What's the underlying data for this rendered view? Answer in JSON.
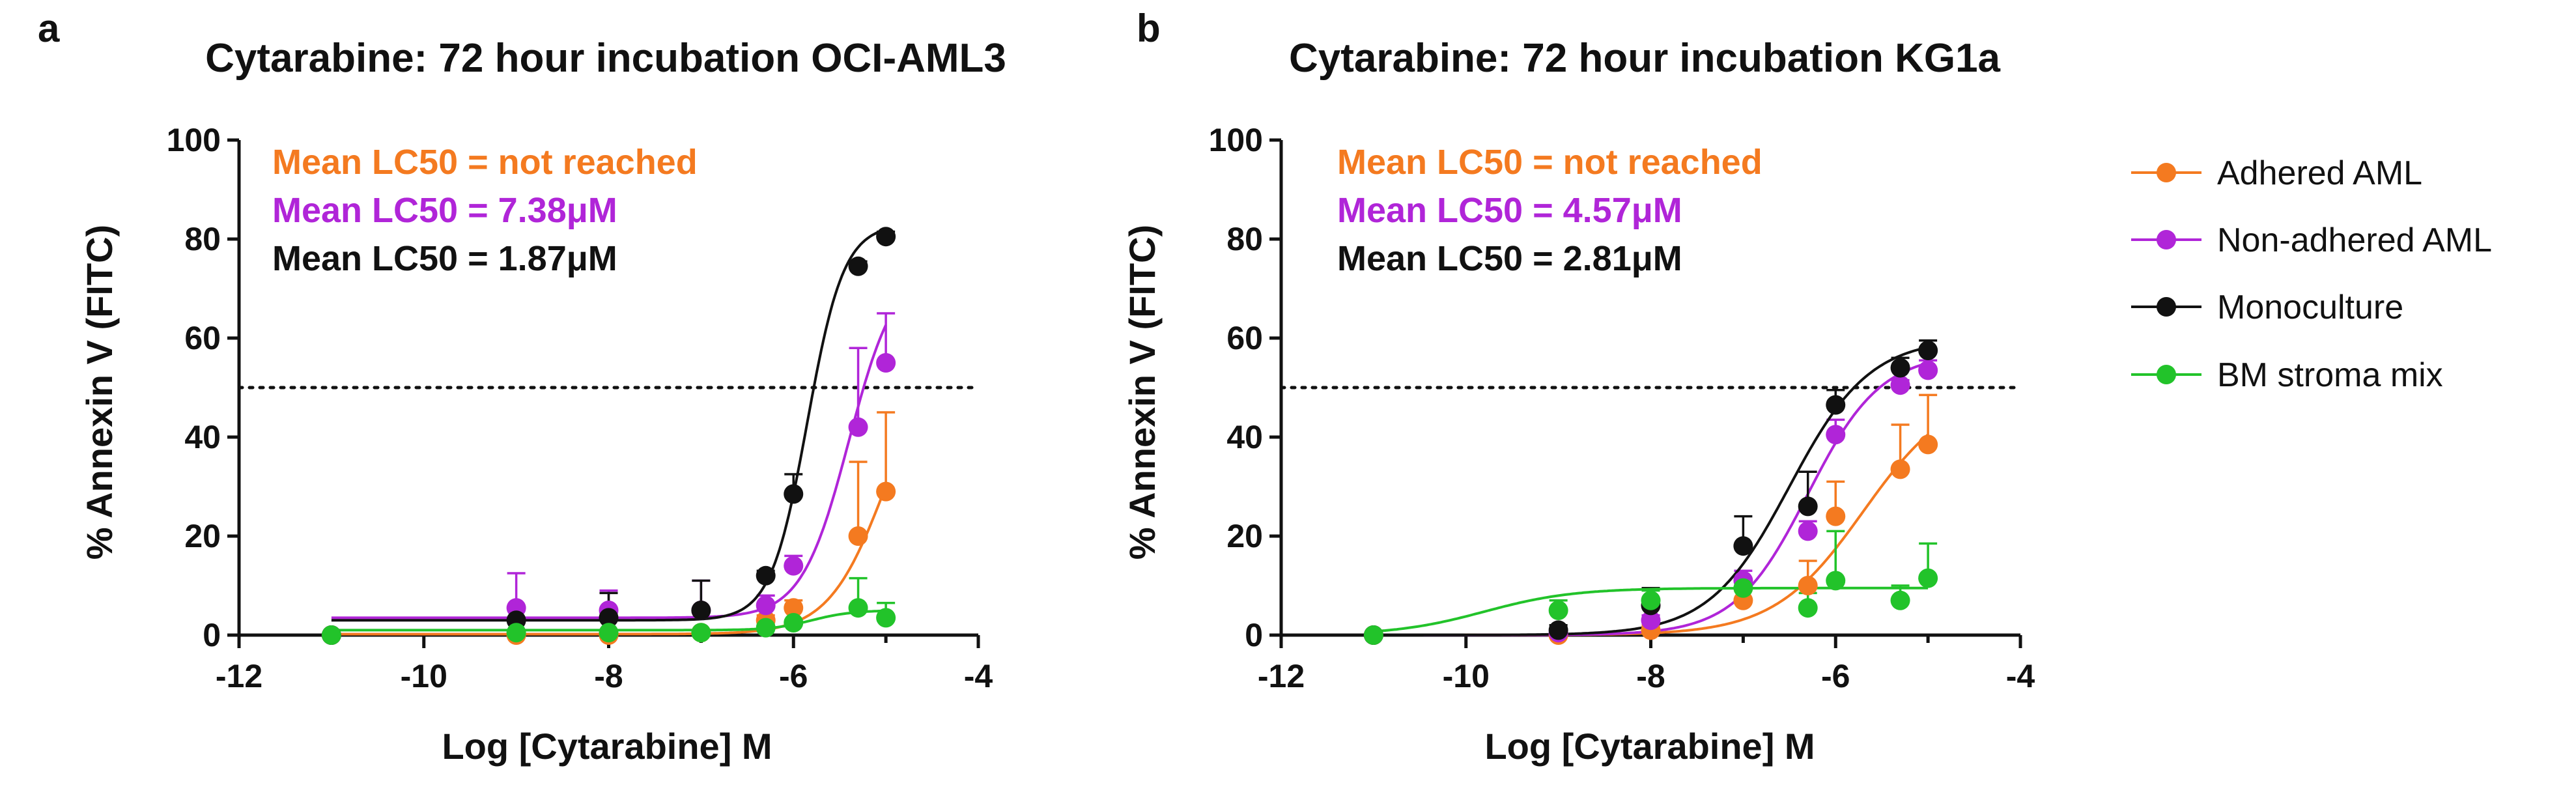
{
  "colors": {
    "adhered": "#F47A20",
    "non_adhered": "#B025D8",
    "monoculture": "#111111",
    "stroma": "#22C32A"
  },
  "legend": [
    {
      "key": "adhered",
      "label": "Adhered AML"
    },
    {
      "key": "non_adhered",
      "label": "Non-adhered AML"
    },
    {
      "key": "monoculture",
      "label": "Monoculture"
    },
    {
      "key": "stroma",
      "label": "BM stroma mix"
    }
  ],
  "chart_data": [
    {
      "type": "scatter",
      "panel": "a",
      "title": "Cytarabine: 72 hour incubation OCI-AML3",
      "xlabel": "Log [Cytarabine] M",
      "ylabel": "% Annexin V (FITC)",
      "xlim": [
        -12,
        -4
      ],
      "ylim": [
        0,
        100
      ],
      "xticks": [
        -12,
        -10,
        -8,
        -6,
        -4
      ],
      "yticks": [
        0,
        20,
        40,
        60,
        80,
        100
      ],
      "threshold": 50,
      "annotations": [
        {
          "key": "adhered",
          "text": "Mean LC50 = not reached"
        },
        {
          "key": "non_adhered",
          "text": "Mean LC50 = 7.38μM"
        },
        {
          "key": "monoculture",
          "text": "Mean LC50 = 1.87μM"
        }
      ],
      "series": [
        {
          "key": "adhered",
          "name": "Adhered AML",
          "x": [
            -11,
            -9,
            -8,
            -7,
            -6.3,
            -6,
            -5.3,
            -5
          ],
          "y": [
            0,
            0,
            0,
            0.5,
            3,
            5.5,
            20,
            29
          ],
          "err": [
            0,
            0,
            0,
            0.5,
            1,
            1.5,
            15,
            16
          ],
          "curve": {
            "bottom": 0.2,
            "top": 60,
            "logEC50": -5.0,
            "hill": 1.4
          }
        },
        {
          "key": "non_adhered",
          "name": "Non-adhered AML",
          "x": [
            -11,
            -9,
            -8,
            -7,
            -6.3,
            -6,
            -5.3,
            -5
          ],
          "y": [
            0,
            5.5,
            5,
            5,
            6,
            14,
            42,
            55
          ],
          "err": [
            0,
            7,
            4,
            6,
            2,
            2,
            16,
            10
          ],
          "curve": {
            "bottom": 3.5,
            "top": 75,
            "logEC50": -5.4,
            "hill": 1.7
          }
        },
        {
          "key": "monoculture",
          "name": "Monoculture",
          "x": [
            -11,
            -9,
            -8,
            -7,
            -6.3,
            -6,
            -5.3,
            -5
          ],
          "y": [
            0,
            3,
            3.5,
            5,
            12,
            28.5,
            74.5,
            80.5
          ],
          "err": [
            0,
            2,
            5,
            6,
            1,
            4,
            1,
            1
          ],
          "curve": {
            "bottom": 3,
            "top": 83,
            "logEC50": -5.85,
            "hill": 2.2
          }
        },
        {
          "key": "stroma",
          "name": "BM stroma mix",
          "x": [
            -11,
            -9,
            -8,
            -7,
            -6.3,
            -6,
            -5.3,
            -5
          ],
          "y": [
            0,
            0.5,
            0.5,
            0.5,
            1.5,
            2.5,
            5.5,
            3.5
          ],
          "err": [
            0,
            0,
            0,
            0,
            0.5,
            0.5,
            6,
            3
          ],
          "curve": {
            "bottom": 1,
            "top": 5,
            "logEC50": -5.8,
            "hill": 2
          }
        }
      ]
    },
    {
      "type": "scatter",
      "panel": "b",
      "title": "Cytarabine: 72 hour incubation KG1a",
      "xlabel": "Log [Cytarabine] M",
      "ylabel": "% Annexin V (FITC)",
      "xlim": [
        -12,
        -4
      ],
      "ylim": [
        0,
        100
      ],
      "xticks": [
        -12,
        -10,
        -8,
        -6,
        -4
      ],
      "yticks": [
        0,
        20,
        40,
        60,
        80,
        100
      ],
      "threshold": 50,
      "annotations": [
        {
          "key": "adhered",
          "text": "Mean LC50 = not reached"
        },
        {
          "key": "non_adhered",
          "text": "Mean LC50 = 4.57μM"
        },
        {
          "key": "monoculture",
          "text": "Mean LC50 = 2.81μM"
        }
      ],
      "series": [
        {
          "key": "adhered",
          "name": "Adhered AML",
          "x": [
            -11,
            -9,
            -8,
            -7,
            -6.3,
            -6,
            -5.3,
            -5
          ],
          "y": [
            0,
            0,
            1,
            7,
            10,
            24,
            33.5,
            38.5
          ],
          "err": [
            0,
            0,
            1,
            2,
            5,
            7,
            9,
            10
          ],
          "curve": {
            "bottom": 0,
            "top": 50,
            "logEC50": -5.7,
            "hill": 0.9
          }
        },
        {
          "key": "non_adhered",
          "name": "Non-adhered AML",
          "x": [
            -11,
            -9,
            -8,
            -7,
            -6.3,
            -6,
            -5.3,
            -5
          ],
          "y": [
            0,
            0.5,
            3,
            11,
            21,
            40.5,
            50.5,
            53.5
          ],
          "err": [
            0,
            0,
            1,
            2,
            2,
            3,
            1,
            2
          ],
          "curve": {
            "bottom": 0,
            "top": 57,
            "logEC50": -6.3,
            "hill": 1.1
          }
        },
        {
          "key": "monoculture",
          "name": "Monoculture",
          "x": [
            -11,
            -9,
            -8,
            -7,
            -6.3,
            -6,
            -5.3,
            -5
          ],
          "y": [
            0,
            1,
            6,
            18,
            26,
            46.5,
            54,
            57.5
          ],
          "err": [
            0,
            1,
            3.5,
            6,
            7,
            3,
            2,
            2
          ],
          "curve": {
            "bottom": 0,
            "top": 60,
            "logEC50": -6.5,
            "hill": 1.0
          }
        },
        {
          "key": "stroma",
          "name": "BM stroma mix",
          "x": [
            -11,
            -9,
            -8,
            -7,
            -6.3,
            -6,
            -5.3,
            -5
          ],
          "y": [
            0,
            5,
            7,
            9.5,
            5.5,
            11,
            7,
            11.5
          ],
          "err": [
            0,
            2,
            2,
            2,
            3,
            10,
            3,
            7
          ],
          "curve": {
            "bottom": 0,
            "top": 9.5,
            "logEC50": -9.8,
            "hill": 0.9
          }
        }
      ]
    }
  ]
}
